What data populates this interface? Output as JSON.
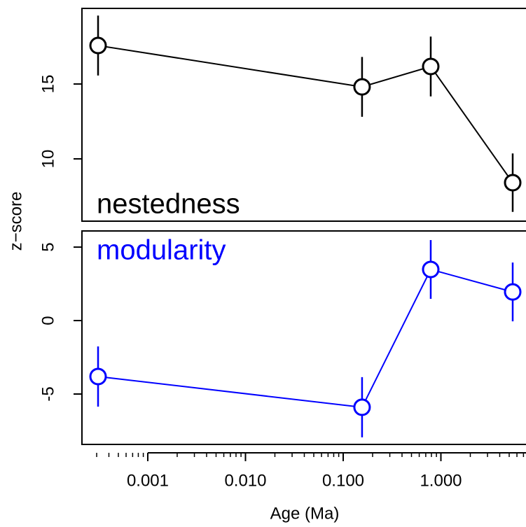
{
  "chart_data": [
    {
      "type": "line",
      "ylabel": "z−score",
      "x": [
        0.00031,
        0.156,
        0.787,
        5.43
      ],
      "xlim": [
        0.000212,
        7.43
      ],
      "xscale": "log",
      "ylim": [
        5.84,
        20.05
      ],
      "yticks": [
        10,
        15
      ],
      "series": [
        {
          "name": "nestedness",
          "color": "#000000",
          "values": [
            17.57,
            14.81,
            16.17,
            8.41
          ],
          "errors": [
            2.0,
            2.0,
            2.0,
            1.95
          ]
        }
      ]
    },
    {
      "type": "line",
      "xlabel": "Age (Ma)",
      "x": [
        0.00031,
        0.156,
        0.787,
        5.43
      ],
      "xlim": [
        0.000212,
        7.43
      ],
      "xscale": "log",
      "xticks": [
        {
          "value": 0.001,
          "label": "0.001"
        },
        {
          "value": 0.01,
          "label": "0.010"
        },
        {
          "value": 0.1,
          "label": "0.100"
        },
        {
          "value": 1,
          "label": "1.000"
        }
      ],
      "xminorticks": [
        0.0003,
        0.0004,
        0.0005,
        0.0006,
        0.0007,
        0.0008,
        0.0009,
        0.002,
        0.003,
        0.004,
        0.005,
        0.006,
        0.007,
        0.008,
        0.009,
        0.02,
        0.03,
        0.04,
        0.05,
        0.06,
        0.07,
        0.08,
        0.09,
        0.2,
        0.3,
        0.4,
        0.5,
        0.6,
        0.7,
        0.8,
        0.9,
        2,
        3,
        4,
        5,
        6,
        7
      ],
      "ylim": [
        -8.43,
        6.1
      ],
      "yticks": [
        -5,
        0,
        5
      ],
      "series": [
        {
          "name": "modularity",
          "color": "#0000ff",
          "values": [
            -3.81,
            -5.9,
            3.48,
            1.95
          ],
          "errors": [
            2.05,
            2.05,
            2.0,
            2.0
          ]
        }
      ]
    }
  ]
}
